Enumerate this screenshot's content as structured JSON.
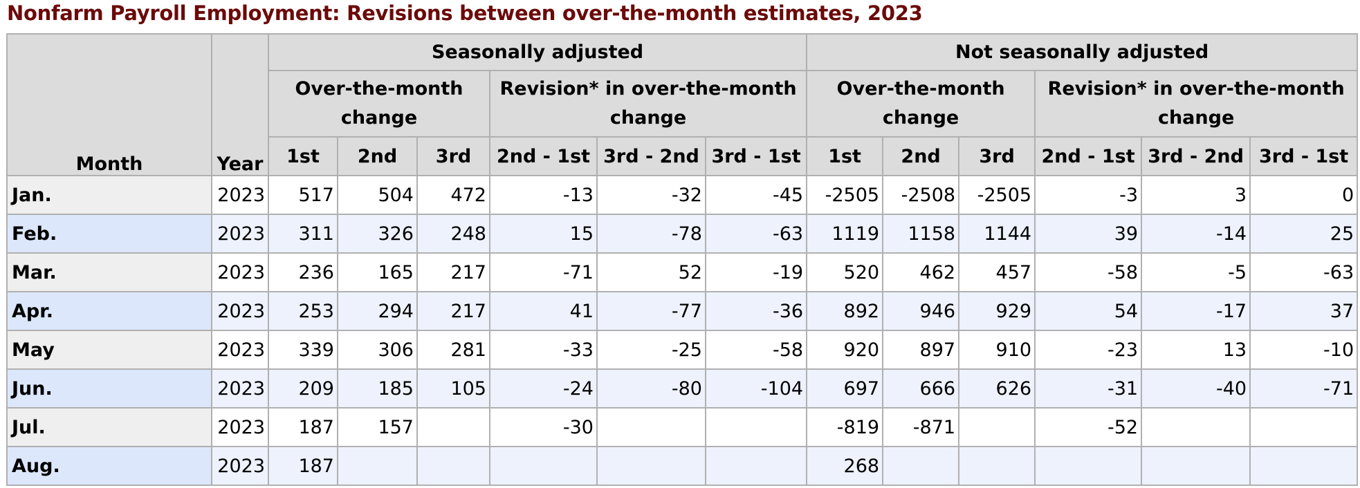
{
  "title": "Nonfarm Payroll Employment: Revisions between over-the-month estimates, 2023",
  "header": {
    "month": "Month",
    "year": "Year",
    "sa": "Seasonally adjusted",
    "nsa": "Not seasonally adjusted",
    "otm": "Over-the-month change",
    "rev": "Revision* in over-the-month change",
    "sub": [
      "1st",
      "2nd",
      "3rd",
      "2nd - 1st",
      "3rd - 2nd",
      "3rd - 1st",
      "1st",
      "2nd",
      "3rd",
      "2nd - 1st",
      "3rd - 2nd",
      "3rd - 1st"
    ]
  },
  "rows": [
    {
      "month": "Jan.",
      "year": "2023",
      "cells": [
        "517",
        "504",
        "472",
        "-13",
        "-32",
        "-45",
        "-2505",
        "-2508",
        "-2505",
        "-3",
        "3",
        "0"
      ]
    },
    {
      "month": "Feb.",
      "year": "2023",
      "cells": [
        "311",
        "326",
        "248",
        "15",
        "-78",
        "-63",
        "1119",
        "1158",
        "1144",
        "39",
        "-14",
        "25"
      ]
    },
    {
      "month": "Mar.",
      "year": "2023",
      "cells": [
        "236",
        "165",
        "217",
        "-71",
        "52",
        "-19",
        "520",
        "462",
        "457",
        "-58",
        "-5",
        "-63"
      ]
    },
    {
      "month": "Apr.",
      "year": "2023",
      "cells": [
        "253",
        "294",
        "217",
        "41",
        "-77",
        "-36",
        "892",
        "946",
        "929",
        "54",
        "-17",
        "37"
      ]
    },
    {
      "month": "May",
      "year": "2023",
      "cells": [
        "339",
        "306",
        "281",
        "-33",
        "-25",
        "-58",
        "920",
        "897",
        "910",
        "-23",
        "13",
        "-10"
      ]
    },
    {
      "month": "Jun.",
      "year": "2023",
      "cells": [
        "209",
        "185",
        "105",
        "-24",
        "-80",
        "-104",
        "697",
        "666",
        "626",
        "-31",
        "-40",
        "-71"
      ]
    },
    {
      "month": "Jul.",
      "year": "2023",
      "cells": [
        "187",
        "157",
        "",
        "-30",
        "",
        "",
        "-819",
        "-871",
        "",
        "-52",
        "",
        ""
      ]
    },
    {
      "month": "Aug.",
      "year": "2023",
      "cells": [
        "187",
        "",
        "",
        "",
        "",
        "",
        "268",
        "",
        "",
        "",
        "",
        ""
      ]
    }
  ]
}
